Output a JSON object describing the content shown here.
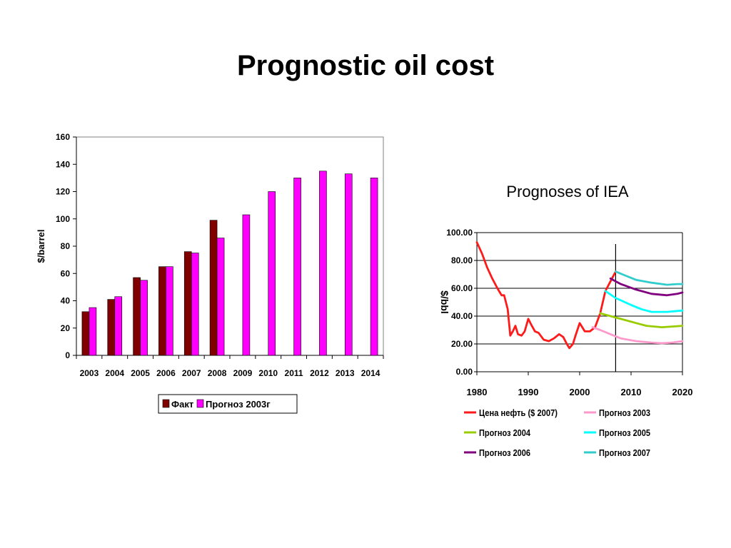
{
  "slide": {
    "title": "Prognostic oil cost"
  },
  "chart_data": [
    {
      "type": "bar",
      "ylabel": "$/barrel",
      "ylim": [
        0,
        160
      ],
      "yticks": [
        0,
        20,
        40,
        60,
        80,
        100,
        120,
        140,
        160
      ],
      "categories": [
        "2003",
        "2004",
        "2005",
        "2006",
        "2007",
        "2008",
        "2009",
        "2010",
        "2011",
        "2012",
        "2013",
        "2014"
      ],
      "series": [
        {
          "name": "Факт",
          "color": "#800000",
          "values": [
            32,
            41,
            57,
            65,
            76,
            99,
            null,
            null,
            null,
            null,
            null,
            null
          ]
        },
        {
          "name": "Прогноз 2003г",
          "color": "#ff00ff",
          "values": [
            35,
            43,
            55,
            65,
            75,
            86,
            103,
            120,
            130,
            135,
            133,
            130
          ]
        }
      ],
      "legend": "bottom",
      "grid": false
    },
    {
      "type": "line",
      "title": "Prognoses of IEA",
      "ylabel": "$/bbl",
      "xlim": [
        1980,
        2020
      ],
      "ylim": [
        0,
        100
      ],
      "xticks": [
        "1980",
        "1990",
        "2000",
        "2010",
        "2020"
      ],
      "yticks": [
        "0.00",
        "20.00",
        "40.00",
        "60.00",
        "80.00",
        "100.00"
      ],
      "grid": true,
      "marker_line_x": 2007,
      "legend": "bottom",
      "series": [
        {
          "name": "Цена нефть ($ 2007)",
          "color": "#ff1a1a",
          "points": [
            [
              1980,
              93
            ],
            [
              1981,
              85
            ],
            [
              1982,
              75
            ],
            [
              1983,
              67
            ],
            [
              1984,
              60
            ],
            [
              1984.8,
              55
            ],
            [
              1985.3,
              55
            ],
            [
              1986,
              45
            ],
            [
              1986.5,
              26
            ],
            [
              1987,
              29
            ],
            [
              1987.5,
              33
            ],
            [
              1988,
              27
            ],
            [
              1988.7,
              26
            ],
            [
              1989.3,
              29
            ],
            [
              1990,
              38
            ],
            [
              1990.7,
              33
            ],
            [
              1991.3,
              29
            ],
            [
              1992,
              28
            ],
            [
              1993,
              23
            ],
            [
              1994,
              22
            ],
            [
              1995,
              24
            ],
            [
              1996,
              27
            ],
            [
              1996.8,
              25
            ],
            [
              1997.5,
              20
            ],
            [
              1998,
              17
            ],
            [
              1998.7,
              20
            ],
            [
              1999.2,
              26
            ],
            [
              2000,
              35
            ],
            [
              2001,
              29
            ],
            [
              2002,
              29
            ],
            [
              2003,
              32
            ],
            [
              2004,
              42
            ],
            [
              2005,
              58
            ],
            [
              2006,
              65
            ],
            [
              2007,
              72
            ]
          ]
        },
        {
          "name": "Прогноз 2003",
          "color": "#ff99cc",
          "points": [
            [
              2002.5,
              32
            ],
            [
              2004,
              30
            ],
            [
              2006,
              27
            ],
            [
              2008,
              24
            ],
            [
              2011,
              22
            ],
            [
              2014,
              21
            ],
            [
              2016,
              20.5
            ],
            [
              2018,
              21
            ],
            [
              2020,
              22
            ]
          ]
        },
        {
          "name": "Прогноз 2004",
          "color": "#99cc00",
          "points": [
            [
              2004,
              42
            ],
            [
              2006,
              40
            ],
            [
              2008,
              38
            ],
            [
              2011,
              35
            ],
            [
              2013,
              33
            ],
            [
              2016,
              32
            ],
            [
              2018,
              32.5
            ],
            [
              2020,
              33
            ]
          ]
        },
        {
          "name": "Прогноз 2005",
          "color": "#00ffff",
          "points": [
            [
              2005,
              58
            ],
            [
              2007,
              53
            ],
            [
              2010,
              48
            ],
            [
              2012,
              45
            ],
            [
              2014,
              43
            ],
            [
              2017,
              43
            ],
            [
              2020,
              44
            ]
          ]
        },
        {
          "name": "Прогноз 2006",
          "color": "#800080",
          "points": [
            [
              2006,
              67
            ],
            [
              2008,
              63
            ],
            [
              2011,
              59
            ],
            [
              2014,
              56
            ],
            [
              2017,
              55
            ],
            [
              2019,
              56
            ],
            [
              2020,
              57
            ]
          ]
        },
        {
          "name": "Прогноз 2007",
          "color": "#33cccc",
          "points": [
            [
              2007,
              72
            ],
            [
              2009,
              69
            ],
            [
              2011,
              66
            ],
            [
              2014,
              64
            ],
            [
              2017,
              62.5
            ],
            [
              2019,
              63
            ],
            [
              2020,
              63
            ]
          ]
        }
      ]
    }
  ]
}
